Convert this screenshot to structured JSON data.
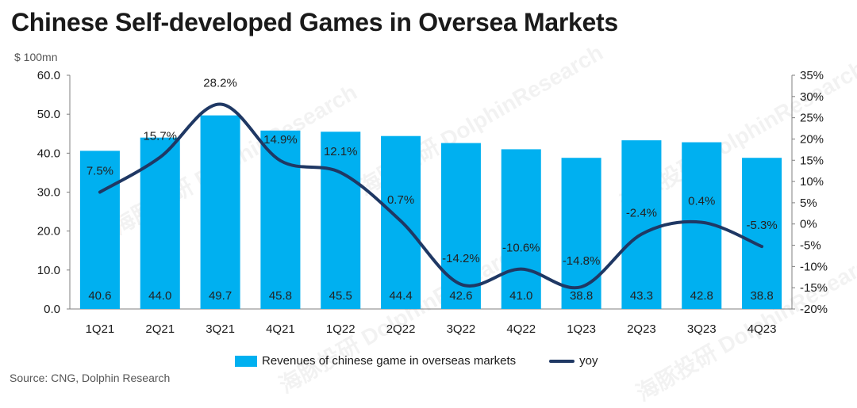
{
  "title": "Chinese Self-developed Games in Oversea Markets",
  "unit": "$ 100mn",
  "source": "Source: CNG, Dolphin Research",
  "watermark": "海豚投研 DolphinResearch",
  "colors": {
    "bar": "#00b0f0",
    "line": "#1f3864",
    "axis": "#7f7f7f"
  },
  "chart_data": {
    "type": "bar+line",
    "title": "Chinese Self-developed Games in Oversea Markets",
    "categories": [
      "1Q21",
      "2Q21",
      "3Q21",
      "4Q21",
      "1Q22",
      "2Q22",
      "3Q22",
      "4Q22",
      "1Q23",
      "2Q23",
      "3Q23",
      "4Q23"
    ],
    "series": [
      {
        "name": "Revenues of chinese game in overseas markets",
        "type": "bar",
        "axis": "left",
        "values": [
          40.6,
          44.0,
          49.7,
          45.8,
          45.5,
          44.4,
          42.6,
          41.0,
          38.8,
          43.3,
          42.8,
          38.8
        ],
        "labels": [
          "40.6",
          "44.0",
          "49.7",
          "45.8",
          "45.5",
          "44.4",
          "42.6",
          "41.0",
          "38.8",
          "43.3",
          "42.8",
          "38.8"
        ]
      },
      {
        "name": "yoy",
        "type": "line",
        "axis": "right",
        "values": [
          7.5,
          15.7,
          28.2,
          14.9,
          12.1,
          0.7,
          -14.2,
          -10.6,
          -14.8,
          -2.4,
          0.4,
          -5.3
        ],
        "labels": [
          "7.5%",
          "15.7%",
          "28.2%",
          "14.9%",
          "12.1%",
          "0.7%",
          "-14.2%",
          "-10.6%",
          "-14.8%",
          "-2.4%",
          "0.4%",
          "-5.3%"
        ]
      }
    ],
    "ylim_left": [
      0,
      60
    ],
    "yticks_left": [
      "0.0",
      "10.0",
      "20.0",
      "30.0",
      "40.0",
      "50.0",
      "60.0"
    ],
    "ylim_right": [
      -20,
      35
    ],
    "yticks_right": [
      "-20%",
      "-15%",
      "-10%",
      "-5%",
      "0%",
      "5%",
      "10%",
      "15%",
      "20%",
      "25%",
      "30%",
      "35%"
    ],
    "ylabel_left": "$ 100mn",
    "legend": [
      "Revenues of chinese game in overseas markets",
      "yoy"
    ],
    "legend_position": "bottom",
    "grid": false
  }
}
